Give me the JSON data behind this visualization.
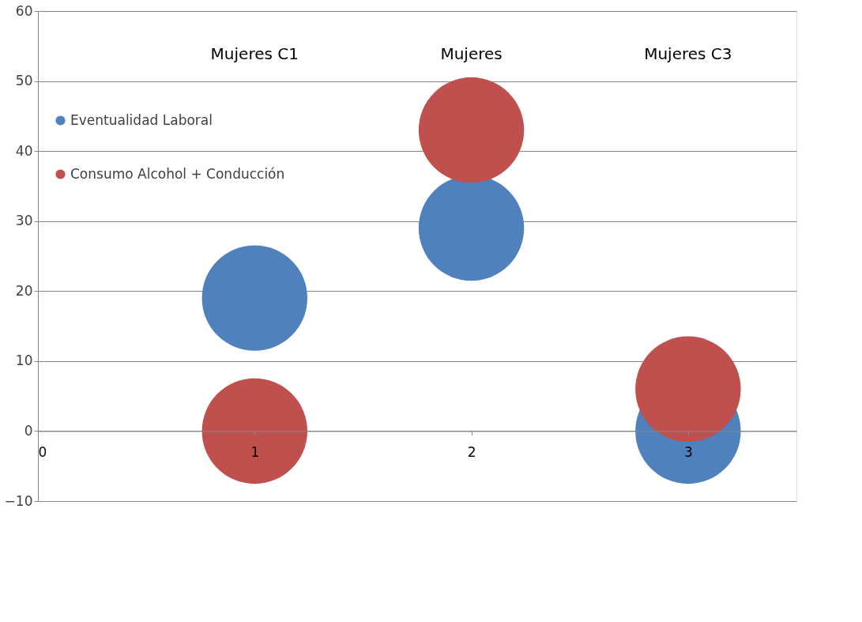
{
  "chart_data": {
    "type": "bubble",
    "x": [
      1,
      2,
      3
    ],
    "series": [
      {
        "name": "Eventualidad Laboral",
        "color": "#4f81bd",
        "values": [
          19,
          29,
          0
        ],
        "sizes": [
          1,
          1,
          1
        ]
      },
      {
        "name": "Consumo Alcohol + Conducción",
        "color": "#c0504d",
        "values": [
          0,
          43,
          6
        ],
        "sizes": [
          1,
          1,
          1
        ]
      }
    ],
    "annotations": [
      "Mujeres C1",
      "Mujeres",
      "Mujeres C3"
    ],
    "xlim": [
      0,
      3.5
    ],
    "xticks": [
      0,
      1,
      2,
      3
    ],
    "ylim": [
      -10,
      60
    ],
    "yticks": [
      -10,
      0,
      10,
      20,
      30,
      40,
      50,
      60
    ],
    "grid": "y",
    "legend": "top left"
  }
}
